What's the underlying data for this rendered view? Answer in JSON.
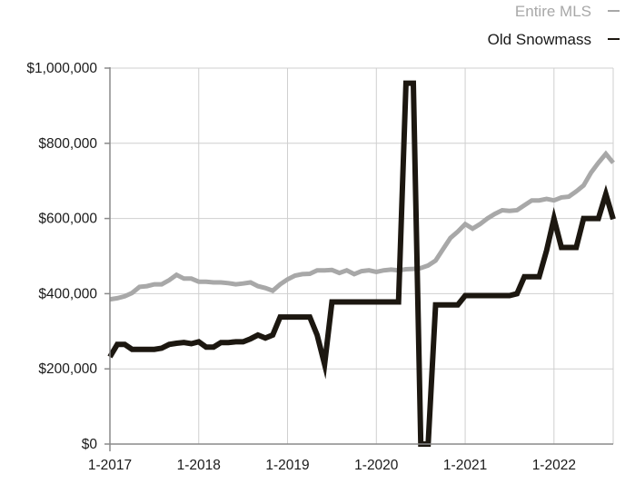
{
  "chart_data": {
    "type": "line",
    "legend_position": "top-right",
    "grid": true,
    "ylim": [
      0,
      1000000
    ],
    "xlim": [
      "2017-01",
      "2022-09"
    ],
    "y_ticks": [
      0,
      200000,
      400000,
      600000,
      800000,
      1000000
    ],
    "y_tick_labels": [
      "$0",
      "$200,000",
      "$400,000",
      "$600,000",
      "$800,000",
      "$1,000,000"
    ],
    "x_ticks": [
      "2017-01",
      "2018-01",
      "2019-01",
      "2020-01",
      "2021-01",
      "2022-01"
    ],
    "x_tick_labels": [
      "1-2017",
      "1-2018",
      "1-2019",
      "1-2020",
      "1-2021",
      "1-2022"
    ],
    "series": [
      {
        "name": "Entire MLS",
        "color": "#a8a8a8",
        "points": [
          [
            "2017-01",
            385000
          ],
          [
            "2017-02",
            388000
          ],
          [
            "2017-03",
            393000
          ],
          [
            "2017-04",
            402000
          ],
          [
            "2017-05",
            418000
          ],
          [
            "2017-06",
            420000
          ],
          [
            "2017-07",
            425000
          ],
          [
            "2017-08",
            425000
          ],
          [
            "2017-09",
            436000
          ],
          [
            "2017-10",
            450000
          ],
          [
            "2017-11",
            440000
          ],
          [
            "2017-12",
            440000
          ],
          [
            "2018-01",
            432000
          ],
          [
            "2018-02",
            432000
          ],
          [
            "2018-03",
            430000
          ],
          [
            "2018-04",
            430000
          ],
          [
            "2018-05",
            428000
          ],
          [
            "2018-06",
            425000
          ],
          [
            "2018-07",
            427000
          ],
          [
            "2018-08",
            430000
          ],
          [
            "2018-09",
            420000
          ],
          [
            "2018-10",
            415000
          ],
          [
            "2018-11",
            408000
          ],
          [
            "2018-12",
            425000
          ],
          [
            "2019-01",
            438000
          ],
          [
            "2019-02",
            448000
          ],
          [
            "2019-03",
            452000
          ],
          [
            "2019-04",
            453000
          ],
          [
            "2019-05",
            462000
          ],
          [
            "2019-06",
            462000
          ],
          [
            "2019-07",
            463000
          ],
          [
            "2019-08",
            455000
          ],
          [
            "2019-09",
            462000
          ],
          [
            "2019-10",
            452000
          ],
          [
            "2019-11",
            460000
          ],
          [
            "2019-12",
            462000
          ],
          [
            "2020-01",
            458000
          ],
          [
            "2020-02",
            462000
          ],
          [
            "2020-03",
            464000
          ],
          [
            "2020-04",
            462000
          ],
          [
            "2020-05",
            465000
          ],
          [
            "2020-06",
            466000
          ],
          [
            "2020-07",
            468000
          ],
          [
            "2020-08",
            475000
          ],
          [
            "2020-09",
            488000
          ],
          [
            "2020-10",
            518000
          ],
          [
            "2020-11",
            548000
          ],
          [
            "2020-12",
            565000
          ],
          [
            "2021-01",
            585000
          ],
          [
            "2021-02",
            573000
          ],
          [
            "2021-03",
            585000
          ],
          [
            "2021-04",
            600000
          ],
          [
            "2021-05",
            612000
          ],
          [
            "2021-06",
            622000
          ],
          [
            "2021-07",
            620000
          ],
          [
            "2021-08",
            622000
          ],
          [
            "2021-09",
            635000
          ],
          [
            "2021-10",
            648000
          ],
          [
            "2021-11",
            648000
          ],
          [
            "2021-12",
            652000
          ],
          [
            "2022-01",
            648000
          ],
          [
            "2022-02",
            656000
          ],
          [
            "2022-03",
            658000
          ],
          [
            "2022-04",
            672000
          ],
          [
            "2022-05",
            688000
          ],
          [
            "2022-06",
            722000
          ],
          [
            "2022-07",
            748000
          ],
          [
            "2022-08",
            772000
          ],
          [
            "2022-09",
            748000
          ]
        ]
      },
      {
        "name": "Old Snowmass",
        "color": "#1c1710",
        "points": [
          [
            "2017-01",
            232000
          ],
          [
            "2017-02",
            265000
          ],
          [
            "2017-03",
            265000
          ],
          [
            "2017-04",
            252000
          ],
          [
            "2017-05",
            252000
          ],
          [
            "2017-06",
            252000
          ],
          [
            "2017-07",
            252000
          ],
          [
            "2017-08",
            255000
          ],
          [
            "2017-09",
            265000
          ],
          [
            "2017-10",
            268000
          ],
          [
            "2017-11",
            270000
          ],
          [
            "2017-12",
            267000
          ],
          [
            "2018-01",
            272000
          ],
          [
            "2018-02",
            258000
          ],
          [
            "2018-03",
            258000
          ],
          [
            "2018-04",
            270000
          ],
          [
            "2018-05",
            270000
          ],
          [
            "2018-06",
            272000
          ],
          [
            "2018-07",
            272000
          ],
          [
            "2018-08",
            280000
          ],
          [
            "2018-09",
            290000
          ],
          [
            "2018-10",
            282000
          ],
          [
            "2018-11",
            290000
          ],
          [
            "2018-12",
            338000
          ],
          [
            "2019-01",
            338000
          ],
          [
            "2019-02",
            338000
          ],
          [
            "2019-03",
            338000
          ],
          [
            "2019-04",
            338000
          ],
          [
            "2019-05",
            290000
          ],
          [
            "2019-06",
            212000
          ],
          [
            "2019-07",
            378000
          ],
          [
            "2019-08",
            378000
          ],
          [
            "2019-09",
            378000
          ],
          [
            "2019-10",
            378000
          ],
          [
            "2019-11",
            378000
          ],
          [
            "2019-12",
            378000
          ],
          [
            "2020-01",
            378000
          ],
          [
            "2020-02",
            378000
          ],
          [
            "2020-03",
            378000
          ],
          [
            "2020-04",
            378000
          ],
          [
            "2020-05",
            960000
          ],
          [
            "2020-06",
            960000
          ],
          [
            "2020-07",
            0
          ],
          [
            "2020-08",
            0
          ],
          [
            "2020-09",
            370000
          ],
          [
            "2020-10",
            370000
          ],
          [
            "2020-11",
            370000
          ],
          [
            "2020-12",
            370000
          ],
          [
            "2021-01",
            395000
          ],
          [
            "2021-02",
            395000
          ],
          [
            "2021-03",
            395000
          ],
          [
            "2021-04",
            395000
          ],
          [
            "2021-05",
            395000
          ],
          [
            "2021-06",
            395000
          ],
          [
            "2021-07",
            395000
          ],
          [
            "2021-08",
            400000
          ],
          [
            "2021-09",
            445000
          ],
          [
            "2021-10",
            445000
          ],
          [
            "2021-11",
            445000
          ],
          [
            "2021-12",
            515000
          ],
          [
            "2022-01",
            600000
          ],
          [
            "2022-02",
            523000
          ],
          [
            "2022-03",
            523000
          ],
          [
            "2022-04",
            523000
          ],
          [
            "2022-05",
            600000
          ],
          [
            "2022-06",
            600000
          ],
          [
            "2022-07",
            600000
          ],
          [
            "2022-08",
            665000
          ],
          [
            "2022-09",
            598000
          ]
        ]
      }
    ]
  }
}
